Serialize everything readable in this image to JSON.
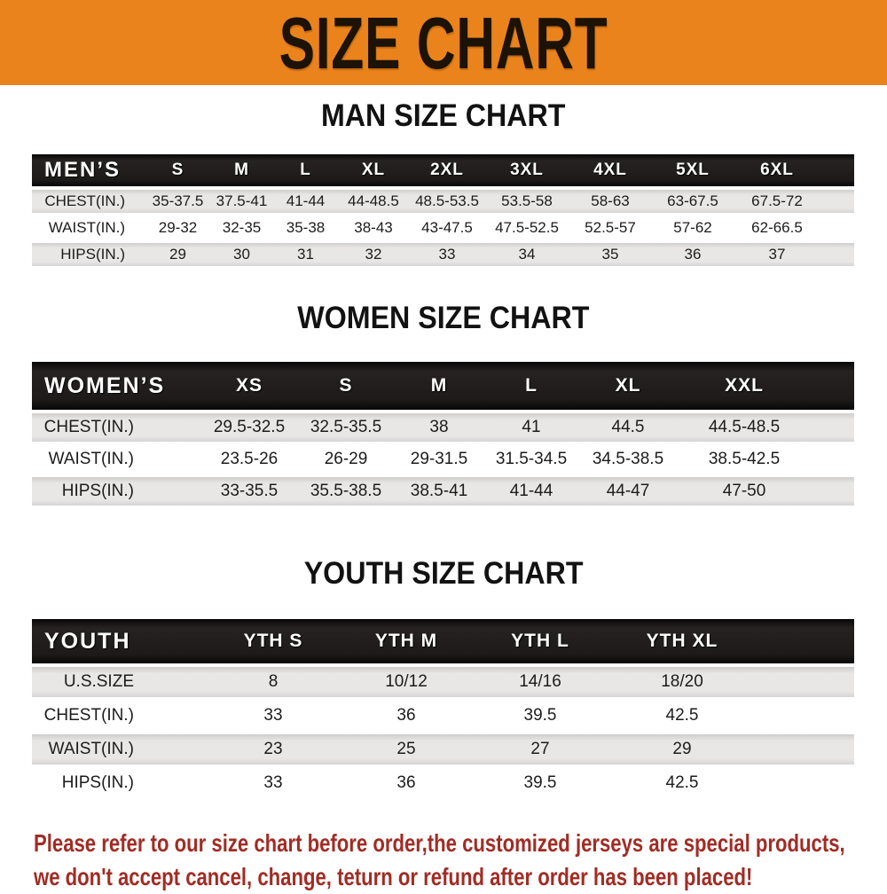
{
  "banner": {
    "title": "SIZE CHART",
    "bg_color": "#EA831C",
    "text_color": "#1C1206"
  },
  "chart_data": [
    {
      "type": "table",
      "title": "MAN SIZE CHART",
      "header_label": "MEN’S",
      "columns": [
        "S",
        "M",
        "L",
        "XL",
        "2XL",
        "3XL",
        "4XL",
        "5XL",
        "6XL"
      ],
      "rows": [
        {
          "label": "CHEST(IN.)",
          "values": [
            "35-37.5",
            "37.5-41",
            "41-44",
            "44-48.5",
            "48.5-53.5",
            "53.5-58",
            "58-63",
            "63-67.5",
            "67.5-72"
          ]
        },
        {
          "label": "WAIST(IN.)",
          "values": [
            "29-32",
            "32-35",
            "35-38",
            "38-43",
            "43-47.5",
            "47.5-52.5",
            "52.5-57",
            "57-62",
            "62-66.5"
          ]
        },
        {
          "label": "HIPS(IN.)",
          "values": [
            "29",
            "30",
            "31",
            "32",
            "33",
            "34",
            "35",
            "36",
            "37"
          ]
        }
      ]
    },
    {
      "type": "table",
      "title": "WOMEN SIZE CHART",
      "header_label": "WOMEN’S",
      "columns": [
        "XS",
        "S",
        "M",
        "L",
        "XL",
        "XXL"
      ],
      "rows": [
        {
          "label": "CHEST(IN.)",
          "values": [
            "29.5-32.5",
            "32.5-35.5",
            "38",
            "41",
            "44.5",
            "44.5-48.5"
          ]
        },
        {
          "label": "WAIST(IN.)",
          "values": [
            "23.5-26",
            "26-29",
            "29-31.5",
            "31.5-34.5",
            "34.5-38.5",
            "38.5-42.5"
          ]
        },
        {
          "label": "HIPS(IN.)",
          "values": [
            "33-35.5",
            "35.5-38.5",
            "38.5-41",
            "41-44",
            "44-47",
            "47-50"
          ]
        }
      ]
    },
    {
      "type": "table",
      "title": "YOUTH SIZE CHART",
      "header_label": "YOUTH",
      "columns": [
        "YTH S",
        "YTH M",
        "YTH L",
        "YTH XL"
      ],
      "rows": [
        {
          "label": "U.S.SIZE",
          "values": [
            "8",
            "10/12",
            "14/16",
            "18/20"
          ]
        },
        {
          "label": "CHEST(IN.)",
          "values": [
            "33",
            "36",
            "39.5",
            "42.5"
          ]
        },
        {
          "label": "WAIST(IN.)",
          "values": [
            "23",
            "25",
            "27",
            "29"
          ]
        },
        {
          "label": "HIPS(IN.)",
          "values": [
            "33",
            "36",
            "39.5",
            "42.5"
          ]
        }
      ]
    }
  ],
  "disclaimer": {
    "lines": [
      "Please refer to our size chart before order,the customized jerseys are special products,",
      "we don't accept cancel, change, teturn or refund after order has been placed!"
    ],
    "color": "#A12C24"
  },
  "colors": {
    "table_header_bg": "#1B1918",
    "table_header_text": "#FFFFFF",
    "row_stripe": "#E3E2E0",
    "row_plain": "#FFFFFF",
    "value_text": "#1C1C1C"
  }
}
